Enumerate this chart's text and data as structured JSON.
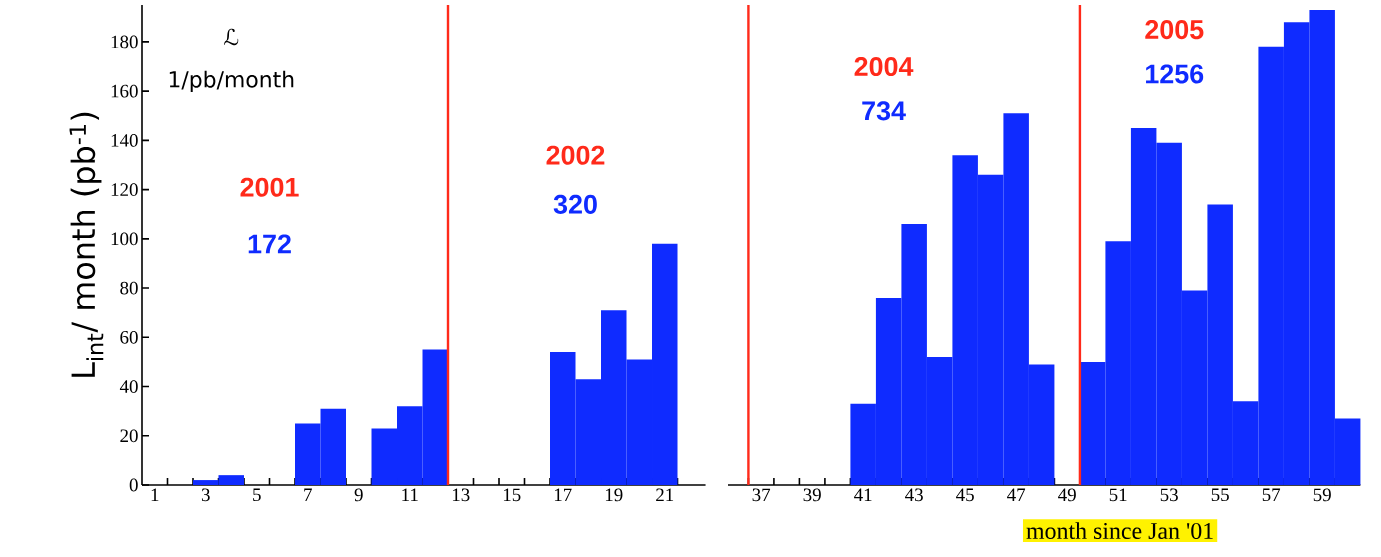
{
  "chart_data": [
    {
      "type": "bar",
      "x": [
        3,
        4,
        7,
        8,
        10,
        11,
        12,
        17,
        18,
        19,
        20,
        21
      ],
      "values": [
        2,
        4,
        25,
        31,
        23,
        32,
        55,
        54,
        43,
        71,
        51,
        98
      ],
      "color": "#0f2bff",
      "ylabel": "L$_{int}$/ month (pb$^{-1}$)",
      "xlim": [
        0.5,
        22.6
      ],
      "ylim": [
        0,
        195
      ],
      "xticks": [
        1,
        {
          "value": 1.5,
          "label": null
        },
        {
          "value": 2.5,
          "label": null
        },
        3,
        {
          "value": 3.5,
          "label": null
        },
        {
          "value": 4.5,
          "label": null
        },
        5,
        {
          "value": 5.5,
          "label": null
        },
        {
          "value": 6.5,
          "label": null
        },
        7,
        {
          "value": 7.5,
          "label": null
        },
        {
          "value": 8.5,
          "label": null
        },
        9,
        {
          "value": 9.5,
          "label": null
        },
        {
          "value": 10.5,
          "label": null
        },
        11,
        {
          "value": 11.5,
          "label": null
        },
        {
          "value": 12.5,
          "label": null
        },
        13,
        {
          "value": 13.5,
          "label": null
        },
        {
          "value": 14.5,
          "label": null
        },
        15,
        {
          "value": 15.5,
          "label": null
        },
        {
          "value": 16.5,
          "label": null
        },
        17,
        {
          "value": 17.5,
          "label": null
        },
        {
          "value": 18.5,
          "label": null
        },
        19,
        {
          "value": 19.5,
          "label": null
        },
        {
          "value": 20.5,
          "label": null
        },
        21,
        {
          "value": 21.5,
          "label": null
        }
      ],
      "yticks": [
        0,
        20,
        40,
        60,
        80,
        100,
        120,
        140,
        160,
        180
      ],
      "ref_lines": [
        {
          "axis": "x",
          "value": 12.5,
          "color": "#ff2a1a"
        }
      ],
      "annotations": [
        "2001",
        "172",
        "2002",
        "320",
        "ℒ",
        "1/pb/month"
      ]
    },
    {
      "type": "bar",
      "x": [
        41,
        42,
        43,
        44,
        45,
        46,
        47,
        48,
        50,
        51,
        52,
        53,
        54,
        55,
        56,
        57,
        58,
        59,
        60
      ],
      "values": [
        33,
        76,
        106,
        52,
        134,
        126,
        151,
        49,
        50,
        99,
        145,
        139,
        79,
        114,
        34,
        178,
        188,
        193,
        27
      ],
      "color": "#0f2bff",
      "xlabel": "month since Jan '01",
      "xlim": [
        35.7,
        60.5
      ],
      "ylim": [
        0,
        195
      ],
      "tick_labels": "x",
      "xticks": [
        {
          "value": 36.5,
          "label": null
        },
        37,
        {
          "value": 37.5,
          "label": null
        },
        {
          "value": 38.5,
          "label": null
        },
        39,
        {
          "value": 39.5,
          "label": null
        },
        {
          "value": 40.5,
          "label": null
        },
        41,
        {
          "value": 41.5,
          "label": null
        },
        {
          "value": 42.5,
          "label": null
        },
        43,
        {
          "value": 43.5,
          "label": null
        },
        {
          "value": 44.5,
          "label": null
        },
        45,
        {
          "value": 45.5,
          "label": null
        },
        {
          "value": 46.5,
          "label": null
        },
        47,
        {
          "value": 47.5,
          "label": null
        },
        {
          "value": 48.5,
          "label": null
        },
        49,
        {
          "value": 49.5,
          "label": null
        },
        {
          "value": 50.5,
          "label": null
        },
        51,
        {
          "value": 51.5,
          "label": null
        },
        {
          "value": 52.5,
          "label": null
        },
        53,
        {
          "value": 53.5,
          "label": null
        },
        {
          "value": 54.5,
          "label": null
        },
        55,
        {
          "value": 55.5,
          "label": null
        },
        {
          "value": 56.5,
          "label": null
        },
        57,
        {
          "value": 57.5,
          "label": null
        },
        {
          "value": 58.5,
          "label": null
        },
        59,
        {
          "value": 59.5,
          "label": null
        }
      ],
      "yticks": [
        0,
        20,
        40,
        60,
        80,
        100,
        120,
        140,
        160,
        180
      ],
      "ref_lines": [
        {
          "axis": "x",
          "value": 36.5,
          "color": "#ff2a1a"
        },
        {
          "axis": "x",
          "value": 49.5,
          "color": "#ff2a1a"
        }
      ],
      "annotations": [
        "2004",
        "734",
        "2005",
        "1256"
      ]
    }
  ]
}
